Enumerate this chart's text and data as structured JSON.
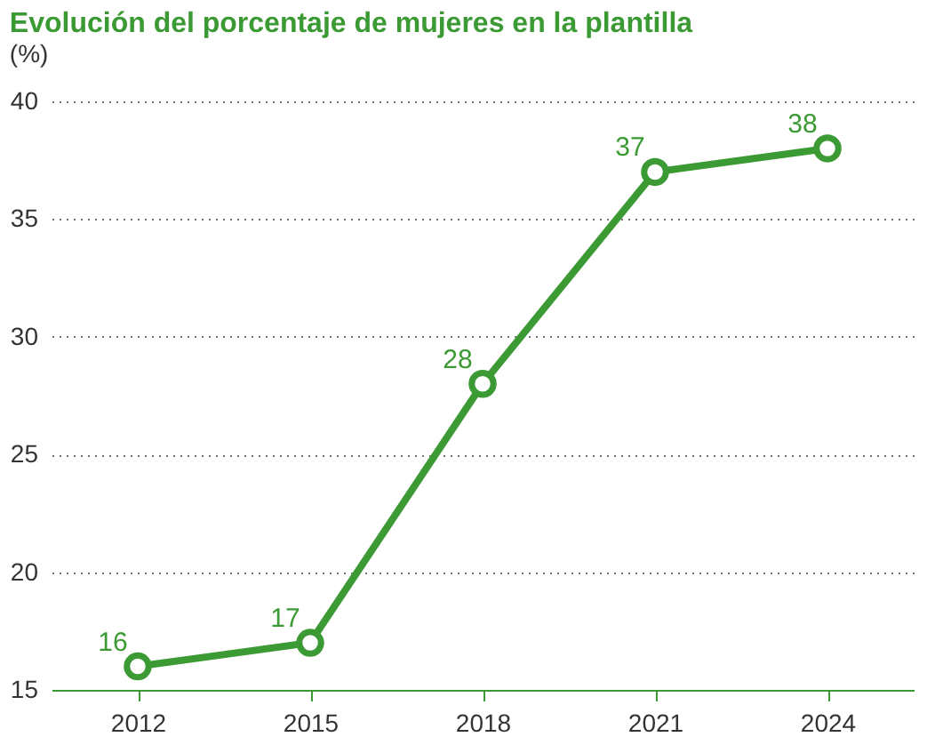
{
  "chart_data": {
    "type": "line",
    "title": "Evolución del porcentaje de mujeres en la plantilla",
    "ylabel": "(%)",
    "categories": [
      "2012",
      "2015",
      "2018",
      "2021",
      "2024"
    ],
    "series": [
      {
        "color": "#3c9a34",
        "values": [
          16,
          17,
          28,
          37,
          38
        ]
      }
    ],
    "ylim": [
      15,
      40
    ],
    "yticks": [
      15,
      20,
      25,
      30,
      35,
      40
    ],
    "grid": "y",
    "marker": "circle",
    "line_style": "solid",
    "data_labels": true
  }
}
